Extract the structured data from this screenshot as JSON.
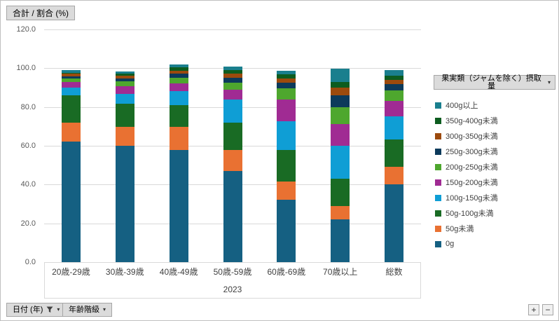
{
  "buttons": {
    "value_field": "合計 / 割合 (%)",
    "legend_field": "果実類（ジャムを除く）摂取量",
    "date_field": "日付 (年)",
    "age_field": "年齢階級",
    "zoom_in": "+",
    "zoom_out": "−"
  },
  "icons": {
    "dropdown": "▾"
  },
  "chart_data": {
    "type": "bar",
    "stacked": true,
    "title": "合計 / 割合 (%)",
    "legend_title": "果実類（ジャムを除く）摂取量",
    "legend_position": "right",
    "grid": true,
    "x_group_label": "2023",
    "categories": [
      "20歳-29歳",
      "30歳-39歳",
      "40歳-49歳",
      "50歳-59歳",
      "60歳-69歳",
      "70歳以上",
      "総数"
    ],
    "ylim": [
      0,
      120
    ],
    "ytick_step": 20,
    "yticks": [
      "0.0",
      "20.0",
      "40.0",
      "60.0",
      "80.0",
      "100.0",
      "120.0"
    ],
    "series": [
      {
        "name": "0g",
        "color": "#156082",
        "values": [
          62.0,
          60.0,
          58.0,
          47.0,
          32.0,
          22.0,
          40.0
        ]
      },
      {
        "name": "50g未満",
        "color": "#E97132",
        "values": [
          10.0,
          9.7,
          11.7,
          10.8,
          9.7,
          6.9,
          9.1
        ]
      },
      {
        "name": "50g-100g未満",
        "color": "#196B24",
        "values": [
          14.0,
          12.0,
          11.3,
          14.1,
          16.3,
          14.1,
          14.1
        ]
      },
      {
        "name": "100g-150g未満",
        "color": "#0F9ED5",
        "values": [
          4.0,
          5.0,
          7.2,
          12.0,
          14.8,
          17.0,
          12.0
        ]
      },
      {
        "name": "150g-200g未満",
        "color": "#A02B93",
        "values": [
          3.0,
          4.0,
          4.0,
          5.0,
          10.9,
          11.2,
          7.9
        ]
      },
      {
        "name": "200g-250g未満",
        "color": "#4EA72E",
        "values": [
          1.7,
          2.5,
          2.8,
          3.6,
          6.1,
          8.7,
          5.4
        ]
      },
      {
        "name": "250g-300g未満",
        "color": "#0C3A5B",
        "values": [
          1.1,
          1.5,
          2.2,
          2.5,
          2.9,
          6.1,
          3.3
        ]
      },
      {
        "name": "300g-350g未満",
        "color": "#9C4A0D",
        "values": [
          1.4,
          1.4,
          1.5,
          2.2,
          2.1,
          4.0,
          2.2
        ]
      },
      {
        "name": "350g-400g未満",
        "color": "#0D5C1F",
        "values": [
          0.5,
          1.1,
          1.8,
          1.8,
          2.2,
          2.9,
          2.1
        ]
      },
      {
        "name": "400g以上",
        "color": "#1A7F8E",
        "values": [
          1.3,
          1.1,
          1.4,
          1.8,
          1.8,
          6.9,
          2.9
        ]
      }
    ]
  }
}
